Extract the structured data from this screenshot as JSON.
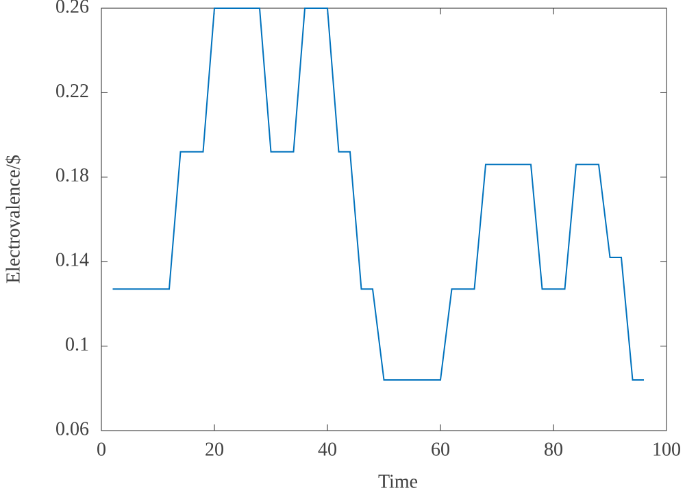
{
  "chart_data": {
    "type": "line",
    "xlabel": "Time",
    "ylabel": "Electrovalence/$",
    "x": [
      2,
      4,
      6,
      8,
      10,
      12,
      14,
      16,
      18,
      20,
      22,
      24,
      26,
      28,
      30,
      32,
      34,
      36,
      38,
      40,
      42,
      44,
      46,
      48,
      50,
      52,
      54,
      56,
      58,
      60,
      62,
      64,
      66,
      68,
      70,
      72,
      74,
      76,
      78,
      80,
      82,
      84,
      86,
      88,
      90,
      92,
      94,
      96
    ],
    "series": [
      {
        "name": "Electrovalence",
        "color": "#0072bd",
        "values": [
          0.127,
          0.127,
          0.127,
          0.127,
          0.127,
          0.127,
          0.192,
          0.192,
          0.192,
          0.26,
          0.26,
          0.26,
          0.26,
          0.26,
          0.192,
          0.192,
          0.192,
          0.26,
          0.26,
          0.26,
          0.192,
          0.192,
          0.127,
          0.127,
          0.084,
          0.084,
          0.084,
          0.084,
          0.084,
          0.084,
          0.127,
          0.127,
          0.127,
          0.186,
          0.186,
          0.186,
          0.186,
          0.186,
          0.127,
          0.127,
          0.127,
          0.186,
          0.186,
          0.186,
          0.142,
          0.142,
          0.084,
          0.084
        ]
      }
    ],
    "xlim": [
      0,
      100
    ],
    "xticks": [
      0,
      20,
      40,
      60,
      80,
      100
    ],
    "ylim": [
      0.06,
      0.26
    ],
    "yticks": [
      0.06,
      0.1,
      0.14,
      0.18,
      0.22,
      0.26
    ],
    "grid": false
  }
}
